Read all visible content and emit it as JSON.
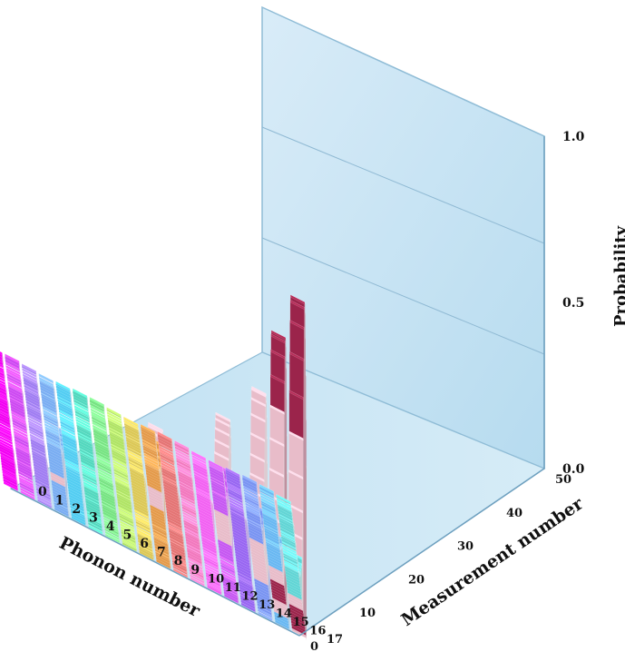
{
  "chart_data": {
    "type": "bar3d",
    "xlabel": "Phonon number",
    "ylabel": "Measurement number",
    "zlabel": "Probability",
    "phonon_ticks": [
      "0",
      "1",
      "2",
      "3",
      "4",
      "5",
      "6",
      "7",
      "8",
      "9",
      "10",
      "11",
      "12",
      "13",
      "14",
      "15",
      "16",
      "17"
    ],
    "measurement_ticks": [
      "0",
      "10",
      "20",
      "30",
      "40",
      "50"
    ],
    "probability_ticks": [
      "0.0",
      "0.5",
      "1.0"
    ],
    "zlim": [
      0,
      1.0
    ],
    "x_range": [
      0,
      17
    ],
    "y_range": [
      0,
      50
    ],
    "grid": true,
    "colors": [
      "#ff00ff",
      "#d94dff",
      "#a884ff",
      "#7fb6ff",
      "#56d8ff",
      "#56e3c8",
      "#7df08a",
      "#b9f06a",
      "#e8d25a",
      "#f0a24e",
      "#f07a7a",
      "#ff7ec8",
      "#ff66ff",
      "#d05cff",
      "#a06bff",
      "#7f9cff",
      "#6fc2ff",
      "#66e0e0"
    ],
    "dominant_color": "#a3264f",
    "peak_color": "#f4c6d4",
    "grid_color": "#9ec3da",
    "wall_color": "#cfe6f4",
    "peaks": [
      {
        "phonon": 17,
        "measurement": 45,
        "value": 0.97
      },
      {
        "phonon": 16,
        "measurement": 38,
        "value": 0.78
      },
      {
        "phonon": 15,
        "measurement": 30,
        "value": 0.52
      },
      {
        "phonon": 13,
        "measurement": 24,
        "value": 0.34
      },
      {
        "phonon": 9,
        "measurement": 26,
        "value": 0.22
      },
      {
        "phonon": 3,
        "measurement": 38,
        "value": 0.16
      }
    ]
  }
}
